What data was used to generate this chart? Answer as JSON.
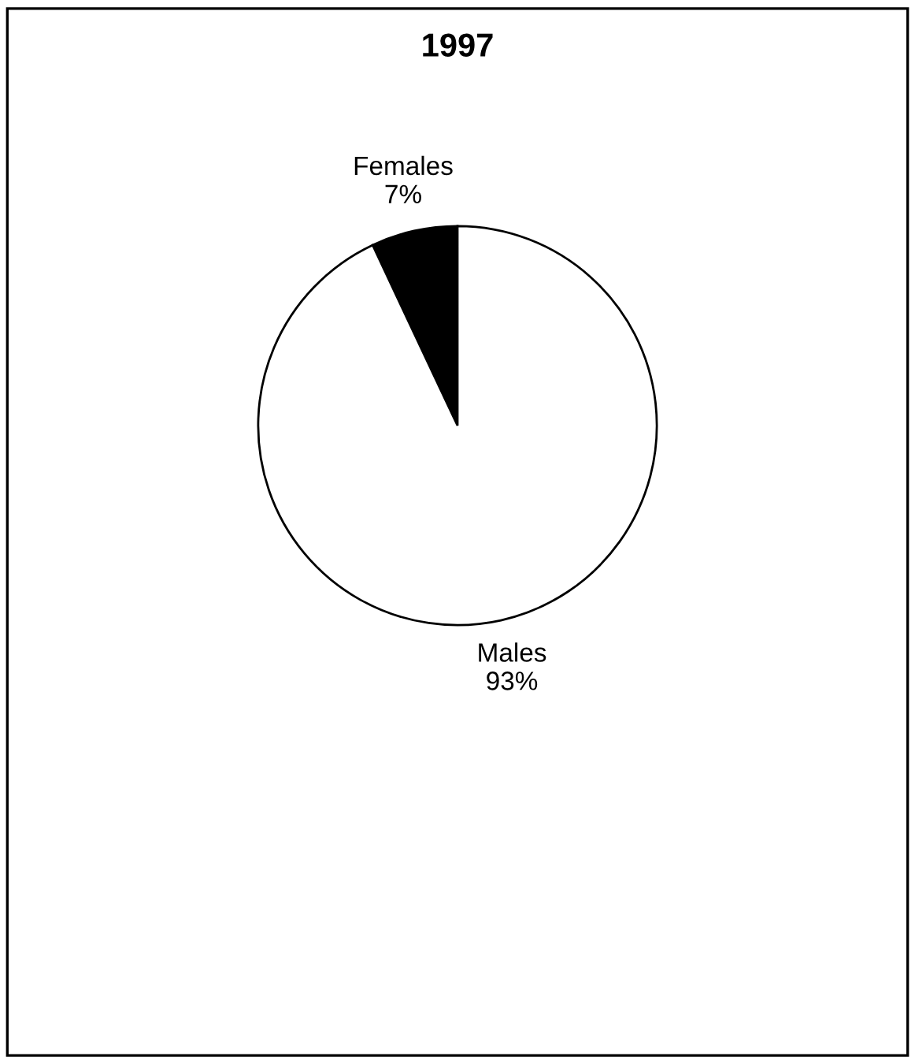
{
  "chart_data": {
    "type": "pie",
    "title": "1997",
    "categories": [
      "Females",
      "Males"
    ],
    "values": [
      7,
      93
    ],
    "colors": [
      "#000000",
      "#ffffff"
    ],
    "value_labels": [
      "7%",
      "93%"
    ]
  }
}
